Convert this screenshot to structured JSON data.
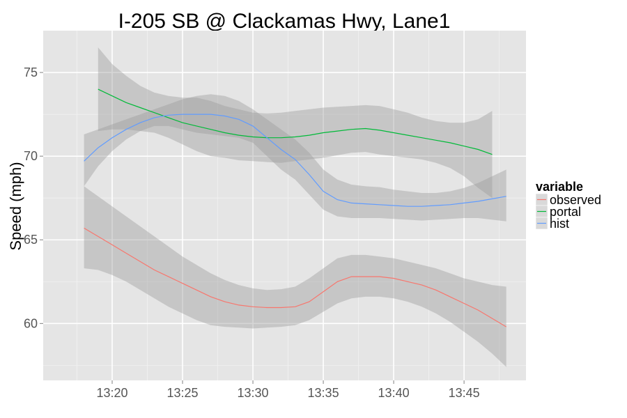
{
  "chart_data": {
    "type": "line",
    "title": "I-205 SB @ Clackamas Hwy, Lane1",
    "xlabel": "",
    "ylabel": "Speed (mph)",
    "x_tick_labels": [
      "13:20",
      "13:25",
      "13:30",
      "13:35",
      "13:40",
      "13:45"
    ],
    "x_tick_minutes": [
      20,
      25,
      30,
      35,
      40,
      45
    ],
    "xlim_minutes_past_13": [
      15.1,
      49.4
    ],
    "y_ticks": [
      60,
      65,
      70,
      75
    ],
    "ylim": [
      56.6,
      77.5
    ],
    "grid": true,
    "legend": {
      "title": "variable",
      "placement": "right",
      "entries": [
        "observed",
        "portal",
        "hist"
      ]
    },
    "series": [
      {
        "name": "observed",
        "color": "#F8766D",
        "x": [
          18,
          19,
          20,
          21,
          22,
          23,
          24,
          25,
          26,
          27,
          28,
          29,
          30,
          31,
          32,
          33,
          34,
          35,
          36,
          37,
          38,
          39,
          40,
          41,
          42,
          43,
          44,
          45,
          46,
          47,
          48
        ],
        "y": [
          65.7,
          65.2,
          64.7,
          64.2,
          63.7,
          63.2,
          62.8,
          62.4,
          62.0,
          61.6,
          61.3,
          61.1,
          61.0,
          60.95,
          60.95,
          61.0,
          61.3,
          61.9,
          62.5,
          62.8,
          62.8,
          62.8,
          62.7,
          62.5,
          62.3,
          62.0,
          61.6,
          61.2,
          60.8,
          60.3,
          59.8
        ],
        "band_upper": [
          68.2,
          67.6,
          67.0,
          66.4,
          65.8,
          65.2,
          64.6,
          64.0,
          63.5,
          63.0,
          62.6,
          62.3,
          62.1,
          62.0,
          62.05,
          62.2,
          62.7,
          63.3,
          63.9,
          64.1,
          64.1,
          64.0,
          63.9,
          63.7,
          63.5,
          63.3,
          63.0,
          62.7,
          62.5,
          62.3,
          62.2
        ],
        "band_lower": [
          63.3,
          63.2,
          62.9,
          62.5,
          62.0,
          61.5,
          61.0,
          60.6,
          60.2,
          59.9,
          59.8,
          59.75,
          59.7,
          59.75,
          59.8,
          59.9,
          60.2,
          60.7,
          61.2,
          61.5,
          61.6,
          61.6,
          61.5,
          61.3,
          61.0,
          60.6,
          60.1,
          59.5,
          58.9,
          58.2,
          57.4
        ]
      },
      {
        "name": "portal",
        "color": "#00BA38",
        "x": [
          19,
          20,
          21,
          22,
          23,
          24,
          25,
          26,
          27,
          28,
          29,
          30,
          31,
          32,
          33,
          34,
          35,
          36,
          37,
          38,
          39,
          40,
          41,
          42,
          43,
          44,
          45,
          46,
          47
        ],
        "y": [
          74.0,
          73.6,
          73.2,
          72.9,
          72.6,
          72.3,
          72.0,
          71.8,
          71.6,
          71.4,
          71.25,
          71.15,
          71.1,
          71.1,
          71.15,
          71.25,
          71.4,
          71.5,
          71.6,
          71.65,
          71.55,
          71.4,
          71.25,
          71.1,
          70.95,
          70.8,
          70.6,
          70.4,
          70.1
        ],
        "band_upper": [
          76.5,
          75.5,
          74.8,
          74.2,
          73.8,
          73.6,
          73.5,
          73.5,
          73.3,
          73.0,
          72.8,
          72.6,
          72.55,
          72.6,
          72.7,
          72.8,
          72.9,
          72.95,
          73.0,
          73.05,
          73.0,
          72.8,
          72.6,
          72.3,
          72.1,
          72.0,
          72.0,
          72.2,
          72.7
        ],
        "band_lower": [
          71.5,
          71.6,
          71.6,
          71.5,
          71.4,
          71.1,
          70.7,
          70.3,
          70.0,
          69.9,
          69.75,
          69.7,
          69.65,
          69.6,
          69.7,
          69.8,
          69.9,
          70.05,
          70.2,
          70.25,
          70.1,
          70.0,
          69.9,
          69.8,
          69.6,
          69.3,
          68.8,
          68.1,
          67.5
        ]
      },
      {
        "name": "hist",
        "color": "#619CFF",
        "x": [
          18,
          19,
          20,
          21,
          22,
          23,
          24,
          25,
          26,
          27,
          28,
          29,
          30,
          31,
          32,
          33,
          34,
          35,
          36,
          37,
          38,
          39,
          40,
          41,
          42,
          43,
          44,
          45,
          46,
          47,
          48
        ],
        "y": [
          69.7,
          70.5,
          71.1,
          71.6,
          72.0,
          72.3,
          72.45,
          72.5,
          72.5,
          72.5,
          72.4,
          72.2,
          71.8,
          71.1,
          70.4,
          69.8,
          68.9,
          67.9,
          67.4,
          67.2,
          67.15,
          67.1,
          67.05,
          67.0,
          67.0,
          67.05,
          67.1,
          67.2,
          67.3,
          67.45,
          67.6
        ],
        "band_upper": [
          71.3,
          71.6,
          71.9,
          72.2,
          72.5,
          72.8,
          73.1,
          73.4,
          73.6,
          73.7,
          73.6,
          73.3,
          72.8,
          72.2,
          71.6,
          71.0,
          70.2,
          69.2,
          68.6,
          68.3,
          68.2,
          68.15,
          68.0,
          67.9,
          67.8,
          67.8,
          67.9,
          68.1,
          68.4,
          68.8,
          69.2
        ],
        "band_lower": [
          68.2,
          69.4,
          70.3,
          71.0,
          71.5,
          71.8,
          71.8,
          71.6,
          71.4,
          71.3,
          71.2,
          71.1,
          70.8,
          70.0,
          69.2,
          68.6,
          67.7,
          66.8,
          66.4,
          66.3,
          66.3,
          66.3,
          66.25,
          66.2,
          66.15,
          66.2,
          66.25,
          66.3,
          66.3,
          66.2,
          66.1
        ]
      }
    ],
    "colors": {
      "panel_background": "#E5E5E5",
      "grid_major": "#FFFFFF",
      "grid_minor": "#F2F2F2",
      "band_fill": "#999999",
      "legend_key_background": "#D9D9D9"
    }
  }
}
